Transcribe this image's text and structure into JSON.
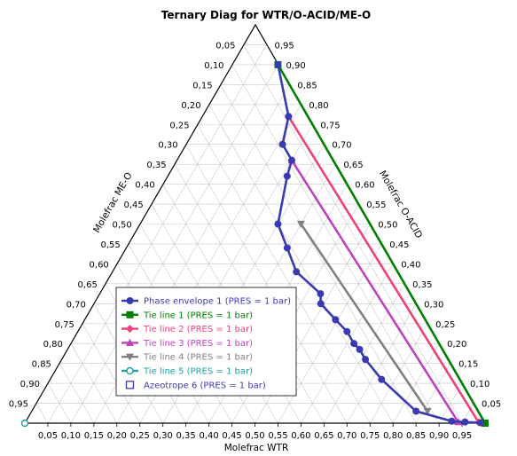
{
  "chart_data": {
    "type": "scatter",
    "subtype": "ternary",
    "title": "Ternary Diag for WTR/O-ACID/ME-O",
    "axes": {
      "bottom": "Molefrac WTR",
      "left": "Molefrac ME-O",
      "right": "Molefrac O-ACID"
    },
    "ticks": [
      "0,05",
      "0,10",
      "0,15",
      "0,20",
      "0,25",
      "0,30",
      "0,35",
      "0,40",
      "0,45",
      "0,50",
      "0,55",
      "0,60",
      "0,65",
      "0,70",
      "0,75",
      "0,80",
      "0,85",
      "0,90",
      "0,95"
    ],
    "grid": true,
    "legend_position": "lower-left",
    "colors": {
      "phase_envelope": "#3a3ab0",
      "tie1": "#008000",
      "tie2": "#f0407a",
      "tie3": "#c040c0",
      "tie4": "#808080",
      "tie5": "#20a0a0",
      "azeotrope": "#3a3ab0"
    },
    "series": [
      {
        "name": "Phase envelope 1 (PRES = 1  bar)",
        "marker": "circle",
        "color": "#3a3ab0",
        "points": [
          {
            "wtr": 0.1,
            "acid": 0.9
          },
          {
            "wtr": 0.188,
            "acid": 0.77
          },
          {
            "wtr": 0.21,
            "acid": 0.7
          },
          {
            "wtr": 0.25,
            "acid": 0.66
          },
          {
            "wtr": 0.26,
            "acid": 0.62
          },
          {
            "wtr": 0.3,
            "acid": 0.5
          },
          {
            "wtr": 0.35,
            "acid": 0.44
          },
          {
            "wtr": 0.4,
            "acid": 0.38
          },
          {
            "wtr": 0.48,
            "acid": 0.325
          },
          {
            "wtr": 0.493,
            "acid": 0.3
          },
          {
            "wtr": 0.545,
            "acid": 0.26
          },
          {
            "wtr": 0.585,
            "acid": 0.23
          },
          {
            "wtr": 0.615,
            "acid": 0.2
          },
          {
            "wtr": 0.635,
            "acid": 0.185
          },
          {
            "wtr": 0.66,
            "acid": 0.16
          },
          {
            "wtr": 0.72,
            "acid": 0.11
          },
          {
            "wtr": 0.835,
            "acid": 0.03
          },
          {
            "wtr": 0.925,
            "acid": 0.005
          },
          {
            "wtr": 0.955,
            "acid": 0.003
          },
          {
            "wtr": 0.99,
            "acid": 0.001
          }
        ]
      },
      {
        "name": "Tie line 1 (PRES = 1  bar)",
        "marker": "square",
        "color": "#008000",
        "points": [
          {
            "wtr": 0.1,
            "acid": 0.9
          },
          {
            "wtr": 1.0,
            "acid": 0.0
          }
        ]
      },
      {
        "name": "Tie line 2 (PRES = 1  bar)",
        "marker": "diamond",
        "color": "#f0407a",
        "points": [
          {
            "wtr": 0.188,
            "acid": 0.77
          },
          {
            "wtr": 0.985,
            "acid": 0.002
          }
        ]
      },
      {
        "name": "Tie line 3 (PRES = 1  bar)",
        "marker": "triangle",
        "color": "#c040c0",
        "points": [
          {
            "wtr": 0.25,
            "acid": 0.66
          },
          {
            "wtr": 0.94,
            "acid": 0.003
          }
        ]
      },
      {
        "name": "Tie line 4 (PRES = 1  bar)",
        "marker": "triangle-down",
        "color": "#808080",
        "points": [
          {
            "wtr": 0.35,
            "acid": 0.5
          },
          {
            "wtr": 0.86,
            "acid": 0.03
          }
        ]
      },
      {
        "name": "Tie line 5 (PRES = 1  bar)",
        "marker": "open-circle",
        "color": "#20a0a0",
        "points": [
          {
            "wtr": 0.0,
            "acid": 0.0
          }
        ]
      },
      {
        "name": "Azeotrope 6 (PRES = 1  bar)",
        "marker": "open-square",
        "color": "#3a3ab0",
        "points": []
      }
    ]
  }
}
